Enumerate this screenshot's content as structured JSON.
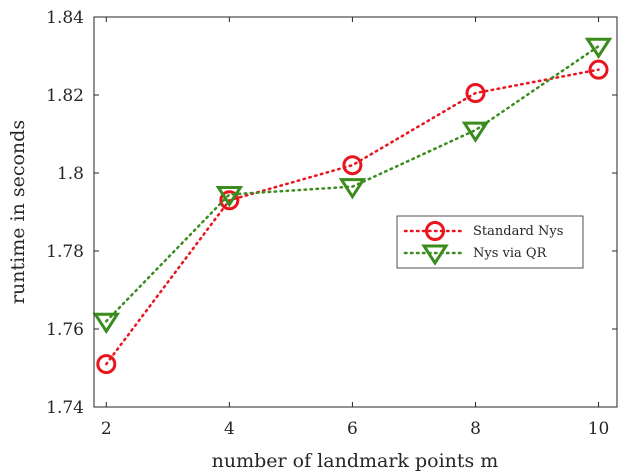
{
  "chart_data": {
    "type": "line",
    "title": "",
    "xlabel": "number of landmark points m",
    "ylabel": "runtime in seconds",
    "x": [
      2,
      4,
      6,
      8,
      10
    ],
    "xlim": [
      1.8,
      10.3
    ],
    "ylim": [
      1.74,
      1.84
    ],
    "x_ticks": [
      "2",
      "4",
      "6",
      "8",
      "10"
    ],
    "y_ticks": [
      "1.74",
      "1.76",
      "1.78",
      "1.8",
      "1.82",
      "1.84"
    ],
    "y_tick_values": [
      1.74,
      1.76,
      1.78,
      1.8,
      1.82,
      1.84
    ],
    "x_tick_values": [
      2,
      4,
      6,
      8,
      10
    ],
    "grid": false,
    "legend_position": "center-right",
    "series": [
      {
        "name": "Standard Nys",
        "values": [
          1.751,
          1.793,
          1.802,
          1.8205,
          1.8265
        ],
        "color": "#e8141e",
        "marker": "circle",
        "line_style": "dotted"
      },
      {
        "name": "Nys via QR",
        "values": [
          1.762,
          1.7945,
          1.7965,
          1.811,
          1.8325
        ],
        "color": "#3a8c1e",
        "marker": "triangle-down",
        "line_style": "dotted"
      }
    ]
  }
}
